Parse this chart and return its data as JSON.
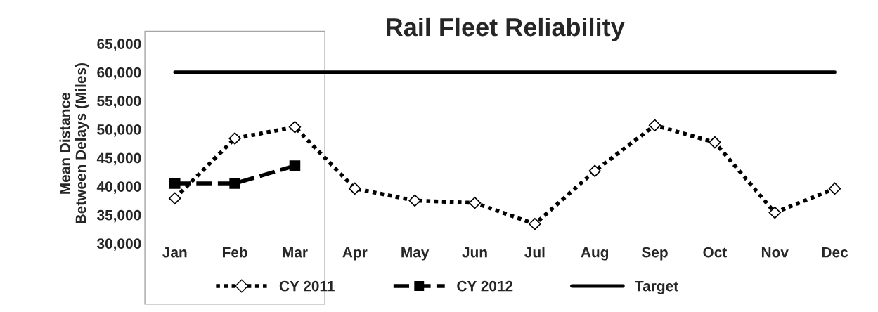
{
  "chart_data": {
    "type": "line",
    "title": "Rail Fleet Reliability",
    "ylabel": "Mean Distance\nBetween Delays (Miles)",
    "categories": [
      "Jan",
      "Feb",
      "Mar",
      "Apr",
      "May",
      "Jun",
      "Jul",
      "Aug",
      "Sep",
      "Oct",
      "Nov",
      "Dec"
    ],
    "series": [
      {
        "name": "CY 2011",
        "color": "#000000",
        "marker": "diamond",
        "line_style": "dotted",
        "values": [
          37900,
          48400,
          50400,
          39600,
          37500,
          37100,
          33400,
          42700,
          50700,
          47700,
          35400,
          39600
        ]
      },
      {
        "name": "CY 2012",
        "color": "#000000",
        "marker": "square",
        "line_style": "dashed",
        "values": [
          40500,
          40500,
          43600,
          null,
          null,
          null,
          null,
          null,
          null,
          null,
          null,
          null
        ]
      },
      {
        "name": "Target",
        "color": "#000000",
        "marker": "none",
        "line_style": "solid",
        "values": [
          60000,
          60000,
          60000,
          60000,
          60000,
          60000,
          60000,
          60000,
          60000,
          60000,
          60000,
          60000
        ]
      }
    ],
    "ylim": [
      30000,
      65000
    ],
    "yticks": [
      {
        "value": 30000,
        "label": "30,000"
      },
      {
        "value": 35000,
        "label": "35,000"
      },
      {
        "value": 40000,
        "label": "40,000"
      },
      {
        "value": 45000,
        "label": "45,000"
      },
      {
        "value": 50000,
        "label": "50,000"
      },
      {
        "value": 55000,
        "label": "55,000"
      },
      {
        "value": 60000,
        "label": "60,000"
      },
      {
        "value": 65000,
        "label": "65,000"
      }
    ],
    "grid": false,
    "legend": "bottom"
  }
}
